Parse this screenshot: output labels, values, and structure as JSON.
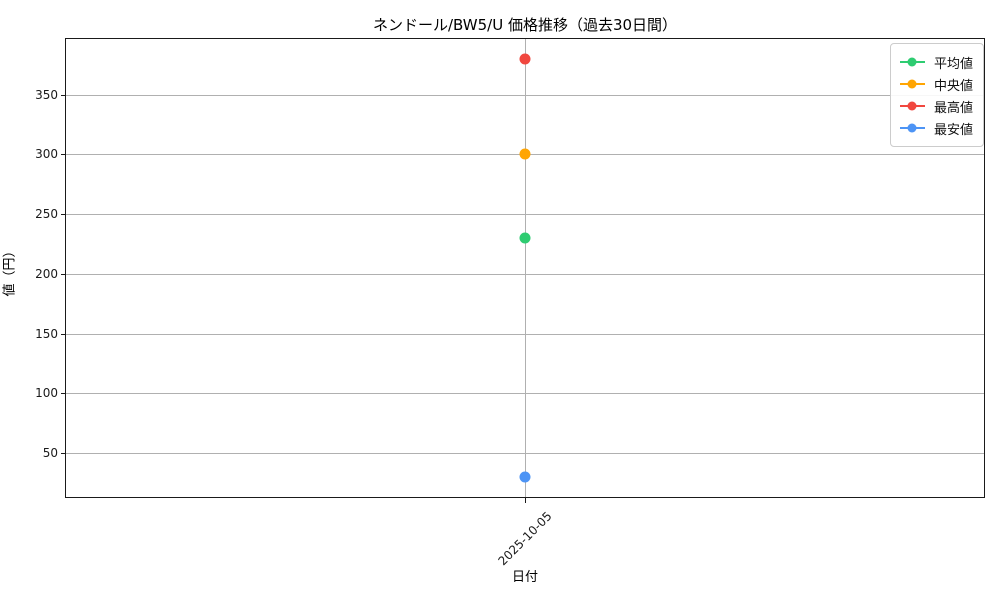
{
  "title": "ネンドール/BW5/U 価格推移（過去30日間）",
  "chart_data": {
    "type": "scatter",
    "title": "ネンドール/BW5/U 価格推移（過去30日間）",
    "xlabel": "日付",
    "ylabel": "値（円）",
    "categories": [
      "2025-10-05"
    ],
    "series": [
      {
        "name": "平均値",
        "color": "#2ecc71",
        "values": [
          230
        ]
      },
      {
        "name": "中央値",
        "color": "#ffa502",
        "values": [
          300
        ]
      },
      {
        "name": "最高値",
        "color": "#f1473f",
        "values": [
          380
        ]
      },
      {
        "name": "最安値",
        "color": "#4d94f5",
        "values": [
          30
        ]
      }
    ],
    "ylim": [
      12.5,
      397.5
    ],
    "yticks": [
      50,
      100,
      150,
      200,
      250,
      300,
      350
    ],
    "grid": true,
    "grid_color": "#b0b0b0",
    "legend_position": "upper right"
  }
}
